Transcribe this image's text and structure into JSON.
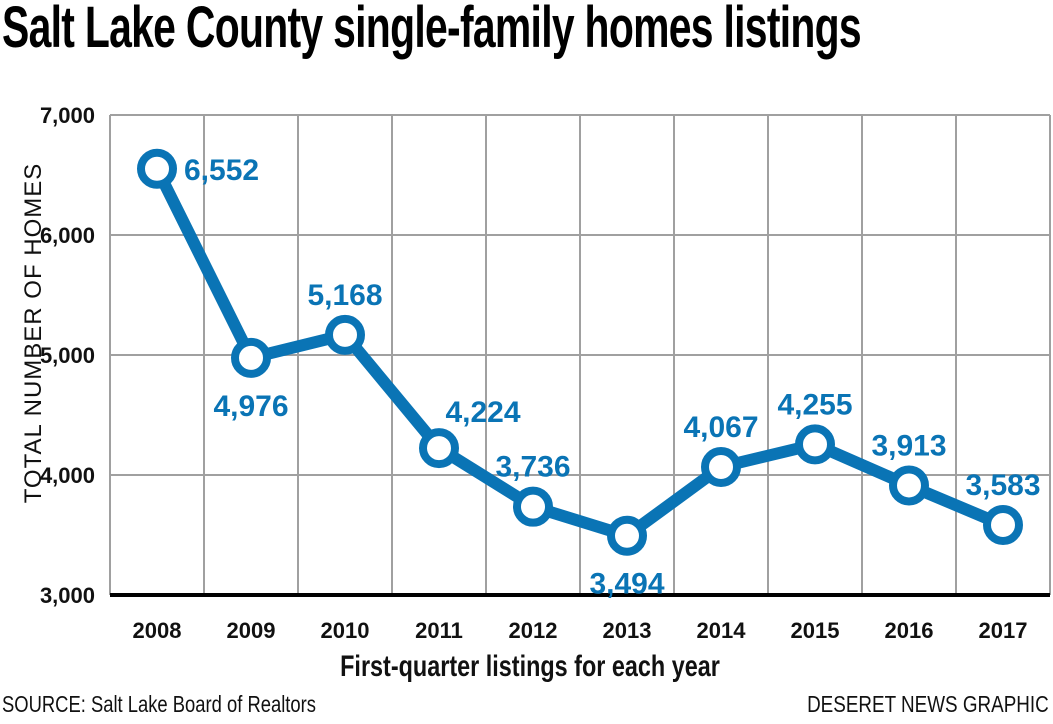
{
  "header": {
    "title": "Salt Lake County single-family homes listings"
  },
  "axes": {
    "y_label": "TOTAL NUMBER OF HOMES",
    "x_label": "First-quarter listings for each year"
  },
  "footer": {
    "source": "SOURCE: Salt Lake Board of Realtors",
    "credit": "DESERET NEWS GRAPHIC"
  },
  "colors": {
    "line": "#0a74b5",
    "grid": "#a0a0a0",
    "axis": "#000000"
  },
  "chart_data": {
    "type": "line",
    "title": "Salt Lake County single-family homes listings",
    "xlabel": "First-quarter listings for each year",
    "ylabel": "TOTAL NUMBER OF HOMES",
    "categories": [
      "2008",
      "2009",
      "2010",
      "2011",
      "2012",
      "2013",
      "2014",
      "2015",
      "2016",
      "2017"
    ],
    "series": [
      {
        "name": "Single-family homes listings",
        "values": [
          6552,
          4976,
          5168,
          4224,
          3736,
          3494,
          4067,
          4255,
          3913,
          3583
        ],
        "labels": [
          "6,552",
          "4,976",
          "5,168",
          "4,224",
          "3,736",
          "3,494",
          "4,067",
          "4,255",
          "3,913",
          "3,583"
        ],
        "label_positions": [
          "right",
          "below",
          "above",
          "above-right",
          "above",
          "below",
          "above",
          "above",
          "above",
          "above"
        ]
      }
    ],
    "ylim": [
      3000,
      7000
    ],
    "yticks": [
      3000,
      4000,
      5000,
      6000,
      7000
    ],
    "ytick_labels": [
      "3,000",
      "4,000",
      "5,000",
      "6,000",
      "7,000"
    ],
    "grid": true,
    "legend": "none",
    "source": "SOURCE: Salt Lake Board of Realtors",
    "credit": "DESERET NEWS GRAPHIC"
  }
}
